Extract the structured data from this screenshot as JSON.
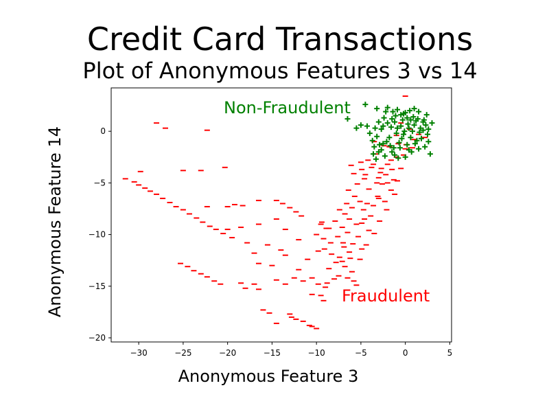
{
  "chart_data": {
    "type": "scatter",
    "title": "Credit Card Transactions",
    "subtitle": "Plot of Anonymous Features 3 vs 14",
    "xlabel": "Anonymous Feature 3",
    "ylabel": "Anonymous Feature 14",
    "xlim": [
      -33.1,
      5.2
    ],
    "ylim": [
      -20.4,
      4.2
    ],
    "xticks": [
      -30,
      -25,
      -20,
      -15,
      -10,
      -5,
      0,
      5
    ],
    "yticks": [
      0,
      -5,
      -10,
      -15,
      -20
    ],
    "grid": false,
    "annotations": [
      {
        "text": "Non-Fraudulent",
        "x": -20.2,
        "y": 2.5,
        "color": "#008000"
      },
      {
        "text": "Fraudulent",
        "x": -7.2,
        "y": -15.9,
        "color": "#ff0000"
      }
    ],
    "series": [
      {
        "name": "Fraudulent",
        "marker": "_",
        "color": "#ff0000",
        "points": [
          [
            -28,
            0.8
          ],
          [
            -27,
            0.3
          ],
          [
            -22.3,
            0.1
          ],
          [
            -25,
            -3.8
          ],
          [
            -23,
            -3.8
          ],
          [
            -20.3,
            -3.5
          ],
          [
            -31.5,
            -4.6
          ],
          [
            -30.5,
            -4.9
          ],
          [
            -30,
            -5.2
          ],
          [
            -29.3,
            -5.5
          ],
          [
            -28.7,
            -5.8
          ],
          [
            -28,
            -6.1
          ],
          [
            -27.3,
            -6.5
          ],
          [
            -26.5,
            -6.9
          ],
          [
            -25.8,
            -7.3
          ],
          [
            -25,
            -7.6
          ],
          [
            -24.3,
            -8.0
          ],
          [
            -23.5,
            -8.4
          ],
          [
            -22.8,
            -8.8
          ],
          [
            -22,
            -9.2
          ],
          [
            -21.3,
            -9.5
          ],
          [
            -20.5,
            -9.9
          ],
          [
            -29.8,
            -3.9
          ],
          [
            -22.3,
            -7.3
          ],
          [
            -20,
            -7.3
          ],
          [
            -19.2,
            -7.1
          ],
          [
            -18.3,
            -7.2
          ],
          [
            -16.5,
            -6.7
          ],
          [
            -14.5,
            -6.7
          ],
          [
            -13.8,
            -7.0
          ],
          [
            -13,
            -7.4
          ],
          [
            -12.3,
            -7.8
          ],
          [
            -11.7,
            -8.2
          ],
          [
            -20,
            -9.5
          ],
          [
            -18.5,
            -9.3
          ],
          [
            -16.5,
            -9.0
          ],
          [
            -14.5,
            -8.5
          ],
          [
            -13.5,
            -9.5
          ],
          [
            -19.5,
            -10.3
          ],
          [
            -17.8,
            -10.8
          ],
          [
            -15.5,
            -11.0
          ],
          [
            -14,
            -11.5
          ],
          [
            -12,
            -10.5
          ],
          [
            -10,
            -10.0
          ],
          [
            -9.5,
            -9.0
          ],
          [
            -17,
            -11.8
          ],
          [
            -16.5,
            -12.8
          ],
          [
            -15,
            -13.0
          ],
          [
            -13.5,
            -12.0
          ],
          [
            -12,
            -13.4
          ],
          [
            -11,
            -12.4
          ],
          [
            -25.3,
            -12.8
          ],
          [
            -24.5,
            -13.1
          ],
          [
            -23.8,
            -13.5
          ],
          [
            -23,
            -13.8
          ],
          [
            -22.3,
            -14.1
          ],
          [
            -21.5,
            -14.5
          ],
          [
            -20.8,
            -14.8
          ],
          [
            -18.5,
            -14.7
          ],
          [
            -18,
            -15.2
          ],
          [
            -17,
            -14.8
          ],
          [
            -16.5,
            -15.3
          ],
          [
            -14.5,
            -14.4
          ],
          [
            -13.5,
            -14.8
          ],
          [
            -12.5,
            -14.2
          ],
          [
            -11.5,
            -14.5
          ],
          [
            -10.5,
            -14.2
          ],
          [
            -9.8,
            -14.8
          ],
          [
            -9,
            -15.1
          ],
          [
            -10.5,
            -15.8
          ],
          [
            -9.5,
            -15.9
          ],
          [
            -16,
            -17.3
          ],
          [
            -15.3,
            -17.6
          ],
          [
            -13,
            -17.7
          ],
          [
            -12.8,
            -18.0
          ],
          [
            -14.5,
            -18.6
          ],
          [
            -12.3,
            -18.2
          ],
          [
            -11.5,
            -18.4
          ],
          [
            -10.8,
            -18.8
          ],
          [
            -10,
            -19.1
          ],
          [
            -10.5,
            -18.9
          ],
          [
            -9.2,
            -16.4
          ],
          [
            -8.8,
            -14.7
          ],
          [
            -8,
            -14.3
          ],
          [
            -7.5,
            -14.0
          ],
          [
            -6.5,
            -14.2
          ],
          [
            -5.8,
            -14.5
          ],
          [
            -5.5,
            -14.9
          ],
          [
            -9.4,
            -8.8
          ],
          [
            -8.6,
            -9.4
          ],
          [
            -9.2,
            -10.4
          ],
          [
            -8.4,
            -10.8
          ],
          [
            -9.1,
            -11.4
          ],
          [
            -8.3,
            -11.9
          ],
          [
            -7.4,
            -12.2
          ],
          [
            -7.8,
            -12.7
          ],
          [
            -6.8,
            -13.1
          ],
          [
            -6.2,
            -12.3
          ],
          [
            -6.9,
            -11.2
          ],
          [
            -7.6,
            -10.2
          ],
          [
            -7.1,
            -9.3
          ],
          [
            -6.3,
            -8.5
          ],
          [
            -7.4,
            -7.6
          ],
          [
            -6.6,
            -7.0
          ],
          [
            -5.7,
            -6.3
          ],
          [
            -6.4,
            -5.7
          ],
          [
            -5.4,
            -5.1
          ],
          [
            -4.6,
            -4.6
          ],
          [
            -5.8,
            -4.1
          ],
          [
            -6.1,
            -3.3
          ],
          [
            -4.9,
            -3.7
          ],
          [
            -4.2,
            -2.8
          ],
          [
            -3.3,
            -2.2
          ],
          [
            -3.6,
            -3.2
          ],
          [
            -2.7,
            -3.6
          ],
          [
            -1.6,
            -2.8
          ],
          [
            -2.2,
            -4.2
          ],
          [
            -1.3,
            -4.7
          ],
          [
            -2.6,
            -5.1
          ],
          [
            -1.6,
            -5.7
          ],
          [
            -3.1,
            -6.3
          ],
          [
            -2.3,
            -6.8
          ],
          [
            -3.6,
            -7.2
          ],
          [
            -4.7,
            -7.6
          ],
          [
            -3.9,
            -8.2
          ],
          [
            -4.9,
            -8.9
          ],
          [
            -4.1,
            -9.6
          ],
          [
            -5.3,
            -10.2
          ],
          [
            -5.9,
            -10.9
          ],
          [
            -4.9,
            -11.4
          ],
          [
            -6.3,
            -11.7
          ],
          [
            -5.1,
            -12.4
          ],
          [
            -4.4,
            -11.0
          ],
          [
            -3.5,
            -9.9
          ],
          [
            -2.9,
            -8.7
          ],
          [
            -2.1,
            -7.6
          ],
          [
            -1.2,
            -6.1
          ],
          [
            -0.9,
            -4.8
          ],
          [
            -0.5,
            -3.6
          ],
          [
            -0.2,
            -2.3
          ],
          [
            0.1,
            -1.3
          ],
          [
            -4.1,
            -5.6
          ],
          [
            -3.2,
            -5.0
          ],
          [
            -2.8,
            -4.0
          ],
          [
            -5.1,
            -6.8
          ],
          [
            -4.3,
            -7.0
          ],
          [
            -6.8,
            -8.0
          ],
          [
            -7.9,
            -8.7
          ],
          [
            -8.9,
            -9.4
          ],
          [
            -9.8,
            -11.6
          ],
          [
            -8.6,
            -13.3
          ],
          [
            -7.1,
            -12.6
          ],
          [
            -6.0,
            -7.4
          ],
          [
            -3.0,
            -4.5
          ],
          [
            -2.0,
            -3.2
          ],
          [
            -1.0,
            -2.5
          ],
          [
            0.0,
            -1.7
          ],
          [
            1.0,
            -0.8
          ],
          [
            -1.0,
            -0.4
          ],
          [
            0.5,
            0.2
          ],
          [
            1.5,
            -0.3
          ],
          [
            -0.5,
            0.8
          ],
          [
            2.2,
            -0.6
          ],
          [
            0.0,
            3.4
          ],
          [
            -2.4,
            -1.4
          ],
          [
            -3.5,
            -1.0
          ],
          [
            -5.0,
            -3.0
          ],
          [
            -4.5,
            -4.2
          ],
          [
            -3.8,
            -3.5
          ],
          [
            -1.8,
            -1.5
          ],
          [
            -0.8,
            -1.2
          ],
          [
            0.8,
            -1.6
          ],
          [
            -3.0,
            -6.5
          ],
          [
            -2.0,
            -5.0
          ],
          [
            -1.5,
            -3.7
          ],
          [
            -6.5,
            -9.8
          ],
          [
            -5.5,
            -9.0
          ],
          [
            -4.6,
            -8.5
          ],
          [
            -7.0,
            -10.8
          ],
          [
            -6.0,
            -13.6
          ]
        ]
      },
      {
        "name": "Non-Fraudulent",
        "marker": "+",
        "color": "#008000",
        "points": [
          [
            -6.5,
            1.2
          ],
          [
            -4.5,
            2.6
          ],
          [
            -3.2,
            2.2
          ],
          [
            -2.0,
            2.3
          ],
          [
            -1.4,
            1.9
          ],
          [
            -0.5,
            1.6
          ],
          [
            0.5,
            2.0
          ],
          [
            1.5,
            1.9
          ],
          [
            2.4,
            1.6
          ],
          [
            3.0,
            0.8
          ],
          [
            2.5,
            -0.3
          ],
          [
            2.6,
            -1.0
          ],
          [
            2.2,
            -1.5
          ],
          [
            2.8,
            -2.2
          ],
          [
            1.5,
            -1.7
          ],
          [
            0.7,
            -2.0
          ],
          [
            0.0,
            -2.5
          ],
          [
            -0.8,
            -2.6
          ],
          [
            -1.5,
            -2.0
          ],
          [
            -2.3,
            -2.4
          ],
          [
            -3.0,
            -2.0
          ],
          [
            -3.5,
            -1.5
          ],
          [
            -3.2,
            -0.5
          ],
          [
            -2.7,
            0.2
          ],
          [
            -2.0,
            0.8
          ],
          [
            -1.2,
            0.9
          ],
          [
            -0.5,
            0.5
          ],
          [
            0.3,
            0.7
          ],
          [
            1.0,
            0.6
          ],
          [
            1.7,
            0.3
          ],
          [
            -4.0,
            -0.2
          ],
          [
            -5.5,
            0.3
          ],
          [
            -5.0,
            0.6
          ],
          [
            -3.6,
            -2.2
          ],
          [
            -3.3,
            -2.7
          ],
          [
            -2.5,
            -1.2
          ],
          [
            -1.8,
            -0.6
          ],
          [
            -1.0,
            -0.2
          ],
          [
            -0.2,
            -0.3
          ],
          [
            0.6,
            -0.6
          ],
          [
            1.3,
            -0.9
          ],
          [
            2.0,
            0.1
          ],
          [
            0.2,
            1.3
          ],
          [
            0.9,
            1.4
          ],
          [
            -0.3,
            1.1
          ],
          [
            -1.5,
            1.2
          ],
          [
            -2.4,
            1.3
          ],
          [
            -3.0,
            0.9
          ],
          [
            -1.7,
            -1.4
          ],
          [
            -0.7,
            -1.1
          ],
          [
            0.2,
            -1.3
          ],
          [
            1.1,
            -1.2
          ],
          [
            1.8,
            -0.7
          ],
          [
            2.3,
            0.6
          ],
          [
            2.1,
            1.1
          ],
          [
            1.2,
            1.0
          ],
          [
            0.4,
            0.3
          ],
          [
            -0.4,
            -0.7
          ],
          [
            -1.3,
            -1.6
          ],
          [
            -2.1,
            -1.0
          ],
          [
            -2.9,
            -1.3
          ],
          [
            -3.7,
            -0.9
          ],
          [
            -4.3,
            0.5
          ],
          [
            -2.2,
            1.9
          ],
          [
            -0.9,
            2.1
          ],
          [
            0.0,
            1.8
          ],
          [
            1.0,
            2.2
          ],
          [
            2.0,
            0.9
          ],
          [
            2.6,
            0.2
          ],
          [
            1.6,
            -0.1
          ],
          [
            0.8,
            0.0
          ],
          [
            -0.1,
            0.0
          ],
          [
            -0.9,
            0.3
          ],
          [
            -1.6,
            0.4
          ],
          [
            -2.5,
            0.5
          ],
          [
            -3.4,
            0.3
          ],
          [
            -1.1,
            1.5
          ],
          [
            0.6,
            1.1
          ],
          [
            1.4,
            1.2
          ],
          [
            -0.6,
            -1.6
          ],
          [
            0.4,
            -1.8
          ],
          [
            -1.2,
            -2.3
          ],
          [
            -2.7,
            -1.8
          ],
          [
            -0.2,
            1.7
          ]
        ]
      }
    ]
  }
}
